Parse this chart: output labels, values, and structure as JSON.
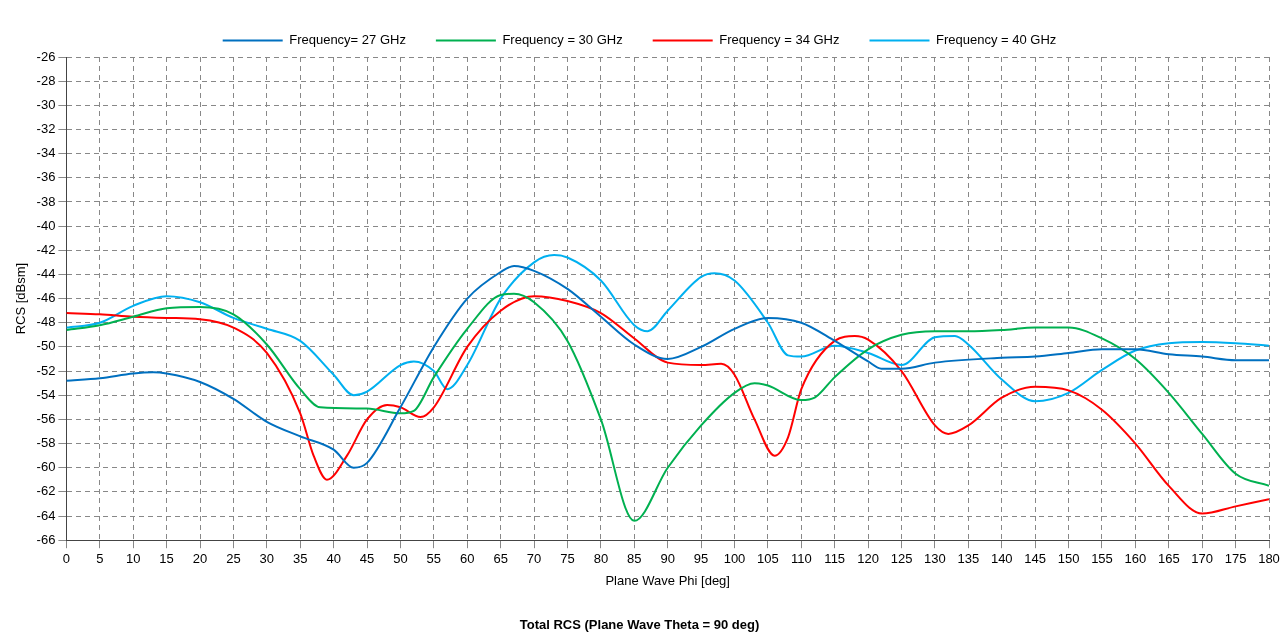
{
  "chart_data": {
    "type": "line",
    "title": "Total RCS (Plane Wave Theta = 90 deg)",
    "xlabel": "Plane Wave Phi [deg]",
    "ylabel": "RCS [dBsm]",
    "xlim": [
      0,
      180
    ],
    "xticks": [
      0,
      5,
      10,
      15,
      20,
      25,
      30,
      35,
      40,
      45,
      50,
      55,
      60,
      65,
      70,
      75,
      80,
      85,
      90,
      95,
      100,
      105,
      110,
      115,
      120,
      125,
      130,
      135,
      140,
      145,
      150,
      155,
      160,
      165,
      170,
      175,
      180
    ],
    "ylim": [
      -66,
      -26
    ],
    "yticks": [
      -66,
      -64,
      -62,
      -60,
      -58,
      -56,
      -54,
      -52,
      -50,
      -48,
      -46,
      -44,
      -42,
      -40,
      -38,
      -36,
      -34,
      -32,
      -30,
      -28,
      -26
    ],
    "grid": true,
    "legend": "top",
    "marker": "none",
    "line_style": "solid",
    "series": [
      {
        "name": "Frequency= 27 GHz",
        "color": "#0070c0",
        "x": [
          0,
          5,
          10,
          13,
          15,
          20,
          25,
          30,
          35,
          40,
          43,
          45,
          50,
          55,
          60,
          65,
          67,
          70,
          75,
          80,
          85,
          90,
          95,
          100,
          105,
          110,
          115,
          120,
          122,
          125,
          130,
          140,
          145,
          150,
          155,
          160,
          165,
          170,
          175,
          180
        ],
        "values": [
          -52.8,
          -52.6,
          -52.2,
          -52.1,
          -52.2,
          -52.9,
          -54.3,
          -56.2,
          -57.4,
          -58.5,
          -60.0,
          -59.6,
          -55,
          -50,
          -46,
          -43.8,
          -43.3,
          -43.7,
          -45.2,
          -47.5,
          -49.8,
          -51,
          -50,
          -48.5,
          -47.6,
          -48,
          -49.5,
          -51.2,
          -51.8,
          -51.8,
          -51.3,
          -50.9,
          -50.8,
          -50.5,
          -50.2,
          -50.2,
          -50.6,
          -50.8,
          -51.1,
          -51.1
        ]
      },
      {
        "name": "Frequency = 30 GHz",
        "color": "#00b050",
        "x": [
          0,
          5,
          10,
          15,
          20,
          25,
          30,
          35,
          38,
          45,
          50,
          52,
          55,
          60,
          65,
          67,
          70,
          75,
          80,
          85,
          90,
          95,
          100,
          103,
          105,
          110,
          112,
          115,
          120,
          125,
          130,
          135,
          140,
          145,
          150,
          155,
          160,
          165,
          170,
          175,
          180
        ],
        "values": [
          -48.6,
          -48.2,
          -47.5,
          -46.8,
          -46.7,
          -47.3,
          -49.8,
          -53.5,
          -55.0,
          -55.1,
          -55.5,
          -55.3,
          -52.5,
          -48.5,
          -45.7,
          -45.6,
          -46.3,
          -49.5,
          -56,
          -64.4,
          -60,
          -56.5,
          -53.8,
          -53,
          -53.2,
          -54.4,
          -54.2,
          -52.5,
          -50.2,
          -49.0,
          -48.7,
          -48.7,
          -48.6,
          -48.4,
          -48.4,
          -49.3,
          -51,
          -53.8,
          -57.2,
          -60.5,
          -61.5
        ]
      },
      {
        "name": "Frequency = 34 GHz",
        "color": "#ff0000",
        "x": [
          0,
          5,
          10,
          15,
          20,
          25,
          30,
          35,
          37,
          39,
          42,
          45,
          48,
          50,
          53,
          55,
          60,
          65,
          70,
          75,
          80,
          85,
          90,
          95,
          98,
          100,
          103,
          106,
          108,
          110,
          115,
          118,
          120,
          125,
          130,
          132,
          135,
          140,
          145,
          150,
          155,
          160,
          165,
          170,
          175,
          180
        ],
        "values": [
          -47.2,
          -47.3,
          -47.5,
          -47.6,
          -47.7,
          -48.4,
          -50.5,
          -55.5,
          -59,
          -61.0,
          -59,
          -56,
          -54.8,
          -55,
          -55.8,
          -55,
          -50,
          -47,
          -45.8,
          -46.2,
          -47.2,
          -49.3,
          -51.3,
          -51.5,
          -51.4,
          -52.3,
          -56,
          -59,
          -57.5,
          -53.5,
          -49.5,
          -49.1,
          -49.4,
          -52,
          -56.5,
          -57.2,
          -56.5,
          -54.2,
          -53.3,
          -53.6,
          -55.2,
          -58,
          -61.5,
          -63.8,
          -63.2,
          -62.6
        ]
      },
      {
        "name": "Frequency = 40 GHz",
        "color": "#00b0f0",
        "x": [
          0,
          5,
          10,
          15,
          20,
          25,
          30,
          35,
          40,
          43,
          45,
          50,
          52,
          55,
          57,
          60,
          65,
          70,
          73,
          75,
          80,
          85,
          87,
          90,
          95,
          97,
          100,
          105,
          108,
          110,
          115,
          120,
          125,
          130,
          133,
          135,
          140,
          145,
          150,
          155,
          160,
          165,
          170,
          175,
          180
        ],
        "values": [
          -48.4,
          -48.0,
          -46.6,
          -45.8,
          -46.3,
          -47.6,
          -48.5,
          -49.5,
          -52.3,
          -54.0,
          -53.7,
          -51.5,
          -51.2,
          -52,
          -53.5,
          -51.5,
          -46,
          -43,
          -42.4,
          -42.6,
          -44.5,
          -48.2,
          -48.7,
          -47,
          -44.2,
          -43.9,
          -44.5,
          -48,
          -50.7,
          -50.8,
          -49.9,
          -50.5,
          -51.5,
          -49.2,
          -49.1,
          -49.8,
          -52.7,
          -54.5,
          -53.8,
          -51.9,
          -50.3,
          -49.7,
          -49.6,
          -49.7,
          -49.9
        ]
      }
    ]
  }
}
